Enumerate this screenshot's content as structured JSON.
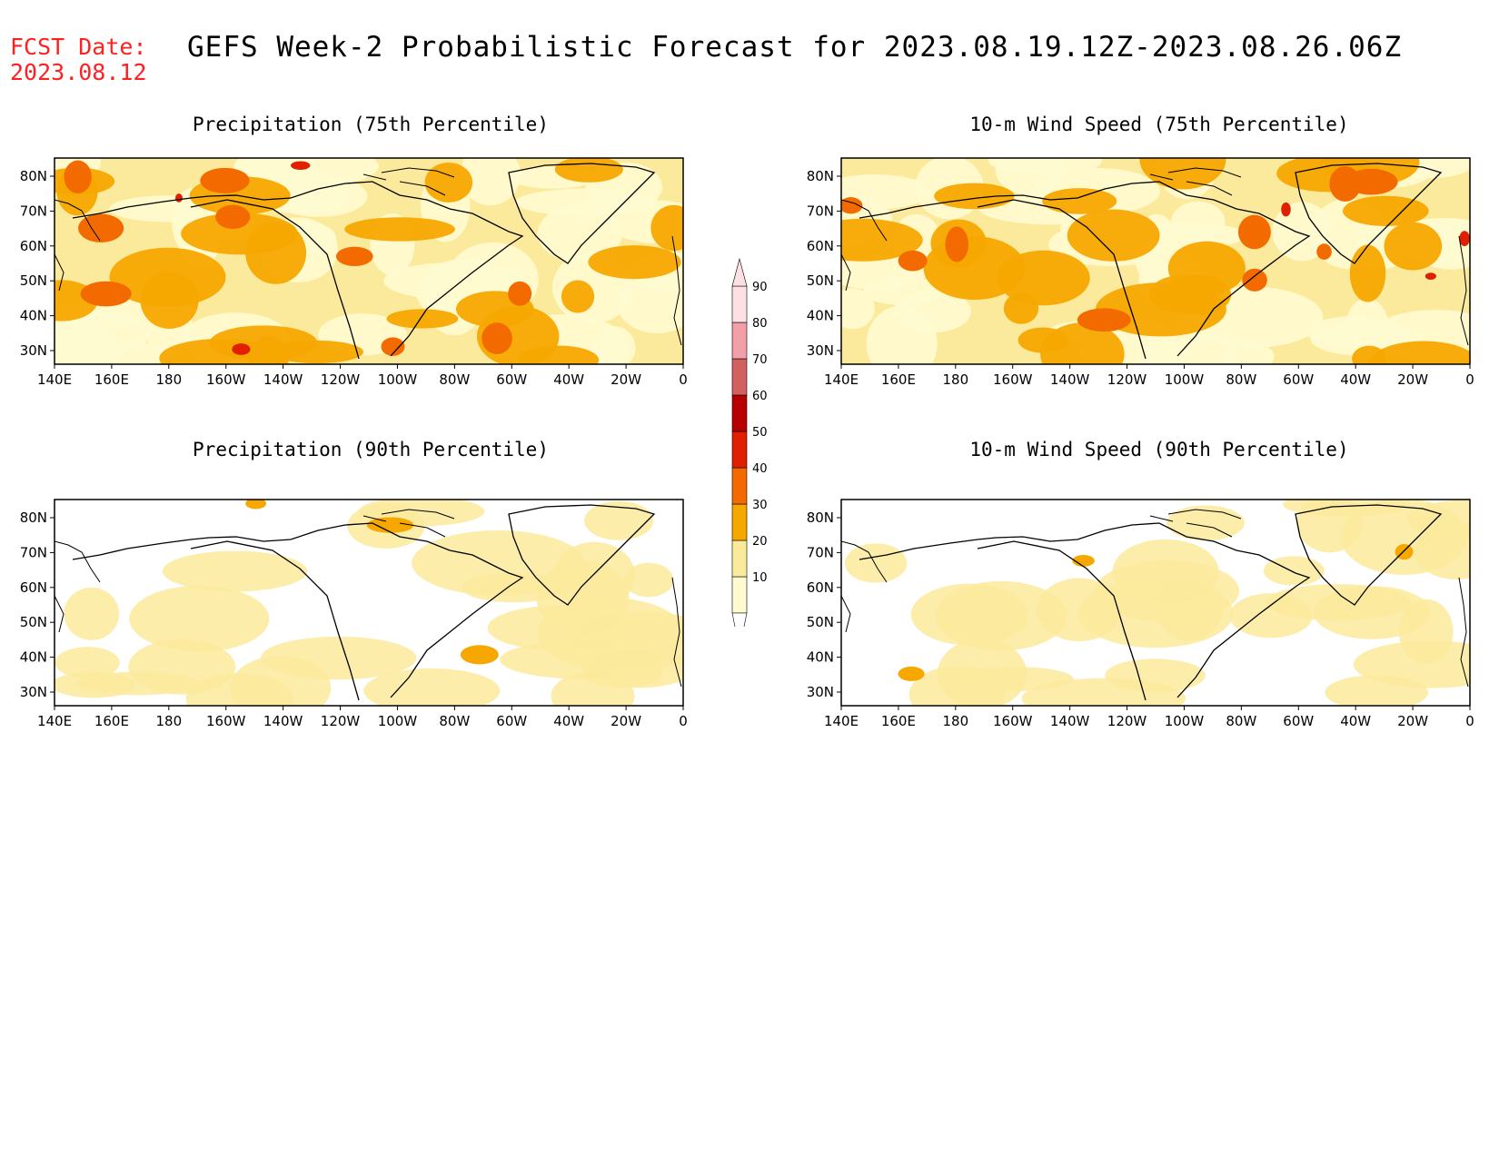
{
  "header": {
    "fcst_label": "FCST Date:",
    "fcst_date": "2023.08.12",
    "title": "GEFS Week-2 Probabilistic Forecast for 2023.08.19.12Z-2023.08.26.06Z"
  },
  "panels": [
    {
      "id": "precip75",
      "title": "Precipitation (75th Percentile)",
      "intensity": 2
    },
    {
      "id": "wind75",
      "title": "10-m Wind Speed (75th Percentile)",
      "intensity": 2
    },
    {
      "id": "precip90",
      "title": "Precipitation (90th Percentile)",
      "intensity": 0
    },
    {
      "id": "wind90",
      "title": "10-m Wind Speed (90th Percentile)",
      "intensity": 0
    }
  ],
  "axes": {
    "lat_labels": [
      "80N",
      "70N",
      "60N",
      "50N",
      "40N",
      "30N"
    ],
    "lon_labels": [
      "140E",
      "160E",
      "180",
      "160W",
      "140W",
      "120W",
      "100W",
      "80W",
      "60W",
      "40W",
      "20W",
      "0"
    ]
  },
  "colorbar": {
    "levels": [
      "10",
      "20",
      "30",
      "40",
      "50",
      "60",
      "70",
      "80",
      "90"
    ],
    "colors": [
      "#fffbd0",
      "#fcea9c",
      "#f7a800",
      "#f36b00",
      "#e02000",
      "#b80000",
      "#d36060",
      "#f2a0a8",
      "#fde0e4"
    ]
  }
}
